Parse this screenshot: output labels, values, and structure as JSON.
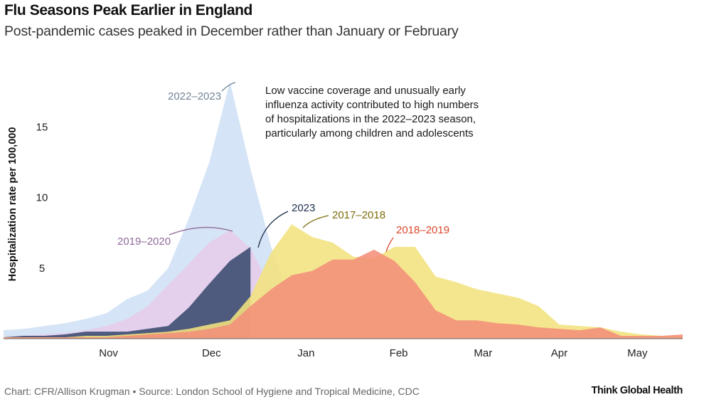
{
  "title": "Flu Seasons Peak Earlier in England",
  "subtitle": "Post-pandemic cases peaked in December rather than January or February",
  "footer": "Chart:   CFR/Allison Krugman • Source: London School of Hygiene and Tropical Medicine, CDC",
  "brand": "Think Global Health",
  "annotation": [
    "Low vaccine coverage and unusually early",
    "influenza activity contributed to high numbers",
    "of hospitalizations in the 2022–2023 season,",
    "particularly among children and adolescents"
  ],
  "chart_data": {
    "type": "area",
    "title": "Flu Seasons Peak Earlier in England",
    "xlabel": "",
    "ylabel": "Hospitalization rate per 100,000",
    "x_ticks": [
      "Nov",
      "Dec",
      "Jan",
      "Feb",
      "Mar",
      "Apr",
      "May"
    ],
    "y_ticks": [
      5,
      10,
      15
    ],
    "ylim": [
      0,
      18.5
    ],
    "x_unit": "weeks",
    "xlim": [
      0,
      33
    ],
    "x_tick_weeks": [
      5.1,
      10.1,
      14.7,
      19.2,
      23.3,
      27.0,
      30.8
    ],
    "grid": false,
    "legend": "direct labels",
    "series": [
      {
        "name": "2022–2023",
        "color": "#cfe0f5",
        "label_color": "#6f8396",
        "x": [
          0,
          1,
          2,
          3,
          4,
          5,
          6,
          7,
          8,
          9,
          10,
          11,
          12,
          13,
          14,
          15,
          16,
          17,
          18,
          19,
          20,
          21,
          22,
          23
        ],
        "values": [
          0.6,
          0.7,
          0.9,
          1.1,
          1.4,
          1.8,
          2.8,
          3.4,
          5.0,
          8.5,
          12.5,
          18.2,
          12.0,
          6.5,
          2.5,
          1.6,
          1.4,
          1.3,
          1.3,
          1.2,
          1.2,
          1.1,
          1.0,
          1.0
        ]
      },
      {
        "name": "2019–2020",
        "color": "#e6cdec",
        "label_color": "#8f6a9a",
        "x": [
          0,
          1,
          2,
          3,
          4,
          5,
          6,
          7,
          8,
          9,
          10,
          11,
          12,
          13,
          14,
          15,
          16,
          17,
          18,
          19,
          20,
          21,
          22,
          23
        ],
        "values": [
          0.1,
          0.2,
          0.3,
          0.4,
          0.6,
          0.9,
          1.4,
          2.3,
          3.8,
          5.3,
          6.8,
          7.7,
          6.4,
          3.6,
          1.9,
          1.8,
          1.5,
          1.2,
          1.0,
          1.7,
          1.3,
          1.0,
          0.9,
          0.9
        ]
      },
      {
        "name": "2023",
        "color": "#394a6e",
        "label_color": "#1c2f4d",
        "x": [
          0,
          1,
          2,
          3,
          4,
          5,
          6,
          7,
          8,
          9,
          10,
          11,
          12
        ],
        "values": [
          0.1,
          0.2,
          0.2,
          0.3,
          0.5,
          0.5,
          0.5,
          0.7,
          0.9,
          2.2,
          3.9,
          5.5,
          6.5
        ]
      },
      {
        "name": "2017–2018",
        "color": "#f3e27e",
        "label_color": "#7d6c0a",
        "x": [
          0,
          1,
          2,
          3,
          4,
          5,
          6,
          7,
          8,
          9,
          10,
          11,
          12,
          13,
          14,
          15,
          16,
          17,
          18,
          19,
          20,
          21,
          22,
          23,
          24,
          25,
          26,
          27,
          28,
          29,
          30,
          31,
          32,
          33
        ],
        "values": [
          0.1,
          0.1,
          0.1,
          0.1,
          0.2,
          0.2,
          0.3,
          0.4,
          0.5,
          0.7,
          1.0,
          1.3,
          3.0,
          6.1,
          8.1,
          7.2,
          6.8,
          5.8,
          5.7,
          6.5,
          6.5,
          4.4,
          4.0,
          3.5,
          3.2,
          2.9,
          2.3,
          1.0,
          0.9,
          0.8,
          0.5,
          0.3,
          0.2,
          0.2
        ]
      },
      {
        "name": "2018–2019",
        "color": "#f4907a",
        "label_color": "#d9482b",
        "x": [
          0,
          1,
          2,
          3,
          4,
          5,
          6,
          7,
          8,
          9,
          10,
          11,
          12,
          13,
          14,
          15,
          16,
          17,
          18,
          19,
          20,
          21,
          22,
          23,
          24,
          25,
          26,
          27,
          28,
          29,
          30,
          31,
          32,
          33
        ],
        "values": [
          0.1,
          0.1,
          0.1,
          0.1,
          0.1,
          0.1,
          0.2,
          0.3,
          0.4,
          0.5,
          0.7,
          1.0,
          2.3,
          3.5,
          4.5,
          4.8,
          5.6,
          5.6,
          6.3,
          5.5,
          4.0,
          2.0,
          1.3,
          1.3,
          1.1,
          1.0,
          0.8,
          0.7,
          0.6,
          0.8,
          0.2,
          0.2,
          0.2,
          0.3
        ]
      }
    ],
    "annotation": "Low vaccine coverage and unusually early influenza activity contributed to high numbers of hospitalizations in the 2022–2023 season, particularly among children and adolescents"
  }
}
